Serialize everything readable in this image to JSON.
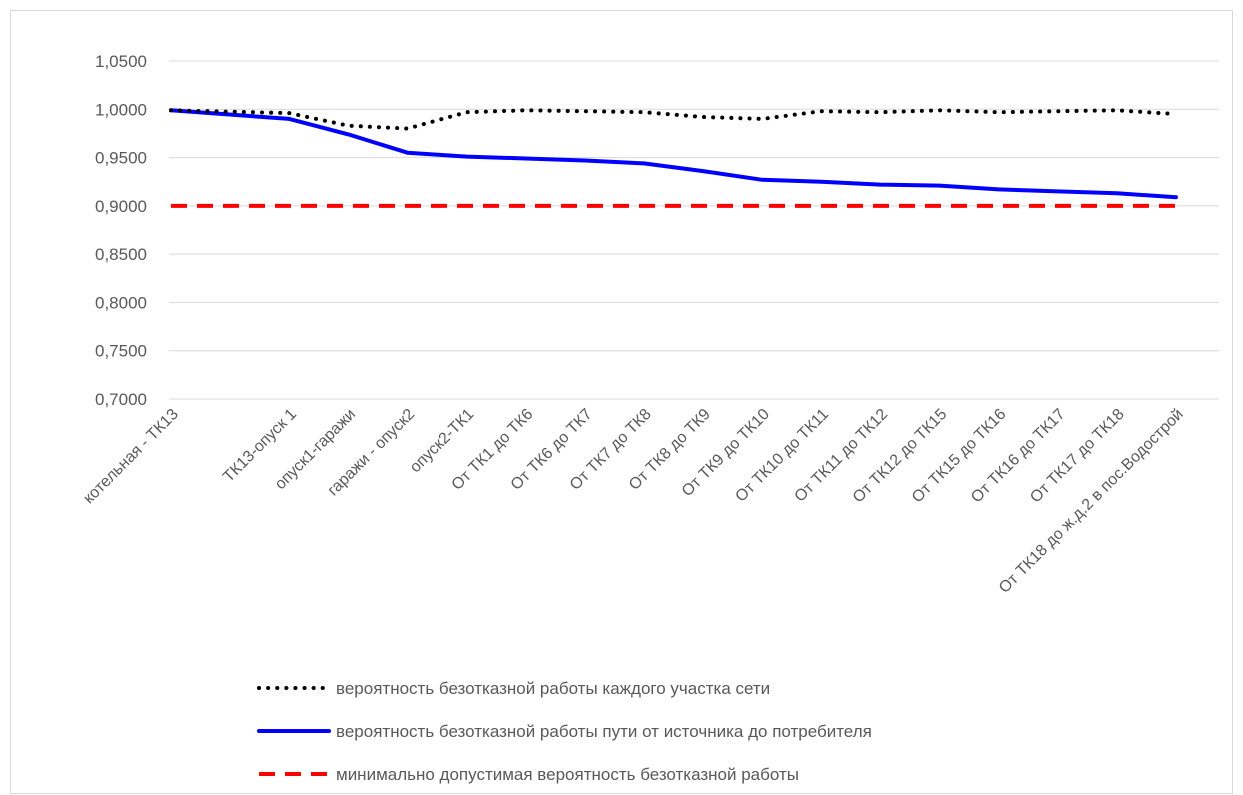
{
  "chart_data": {
    "type": "line",
    "title": "",
    "xlabel": "",
    "ylabel": "",
    "ylim": [
      0.7,
      1.05
    ],
    "yticks": [
      "0,7000",
      "0,7500",
      "0,8000",
      "0,8500",
      "0,9000",
      "0,9500",
      "1,0000",
      "1,0500"
    ],
    "ytick_values": [
      0.7,
      0.75,
      0.8,
      0.85,
      0.9,
      0.95,
      1.0,
      1.05
    ],
    "grid": true,
    "legend": "bottom",
    "categories": [
      "котельная - ТК13",
      "ТК13-опуск 1",
      "опуск1-гаражи",
      "гаражи - опуск2",
      "опуск2-ТК1",
      "От ТК1 до ТК6",
      "От ТК6 до ТК7",
      "От ТК7 до ТК8",
      "От ТК8 до ТК9",
      "От ТК9 до ТК10",
      "От ТК10 до ТК11",
      "От ТК11 до ТК12",
      "От ТК12 до ТК15",
      "От ТК15 до ТК16",
      "От ТК16 до ТК17",
      "От ТК17 до ТК18",
      "От ТК18 до ж.д.2 в пос.Водострой"
    ],
    "x_positions": [
      0,
      2,
      3,
      4,
      5,
      6,
      7,
      8,
      9,
      10,
      11,
      12,
      13,
      14,
      15,
      16,
      17
    ],
    "series": [
      {
        "name": "вероятность безотказной работы каждого участка сети",
        "color": "#000000",
        "style": "dotted",
        "values": [
          0.999,
          0.996,
          0.983,
          0.98,
          0.997,
          0.999,
          0.998,
          0.997,
          0.992,
          0.99,
          0.998,
          0.997,
          0.999,
          0.997,
          0.998,
          0.999,
          0.995
        ]
      },
      {
        "name": "вероятность безотказной работы пути от источника до потребителя",
        "color": "#0000ff",
        "style": "solid",
        "values": [
          0.999,
          0.99,
          0.974,
          0.955,
          0.951,
          0.949,
          0.947,
          0.944,
          0.936,
          0.927,
          0.925,
          0.922,
          0.921,
          0.917,
          0.915,
          0.913,
          0.909
        ]
      },
      {
        "name": "минимально допустимая вероятность безотказной работы",
        "color": "#ff0000",
        "style": "dashed",
        "values": [
          0.9,
          0.9,
          0.9,
          0.9,
          0.9,
          0.9,
          0.9,
          0.9,
          0.9,
          0.9,
          0.9,
          0.9,
          0.9,
          0.9,
          0.9,
          0.9,
          0.9
        ]
      }
    ]
  }
}
